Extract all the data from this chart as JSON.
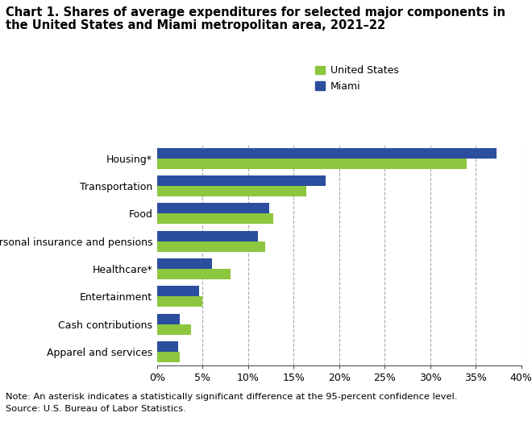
{
  "title_line1": "Chart 1. Shares of average expenditures for selected major components in",
  "title_line2": "the United States and Miami metropolitan area, 2021–22",
  "categories": [
    "Housing*",
    "Transportation",
    "Food",
    "Personal insurance and pensions",
    "Healthcare*",
    "Entertainment",
    "Cash contributions",
    "Apparel and services"
  ],
  "us_values": [
    34.0,
    16.4,
    12.8,
    11.9,
    8.1,
    5.0,
    3.7,
    2.5
  ],
  "miami_values": [
    37.3,
    18.5,
    12.3,
    11.1,
    6.0,
    4.6,
    2.5,
    2.3
  ],
  "us_color": "#8DC63F",
  "miami_color": "#2B4F9E",
  "legend_labels": [
    "United States",
    "Miami"
  ],
  "note_line1": "Note: An asterisk indicates a statistically significant difference at the 95-percent confidence level.",
  "note_line2": "Source: U.S. Bureau of Labor Statistics.",
  "xlim": [
    0,
    40
  ],
  "xtick_values": [
    0,
    5,
    10,
    15,
    20,
    25,
    30,
    35,
    40
  ],
  "background_color": "#ffffff",
  "grid_color": "#aaaaaa",
  "bar_height": 0.38
}
